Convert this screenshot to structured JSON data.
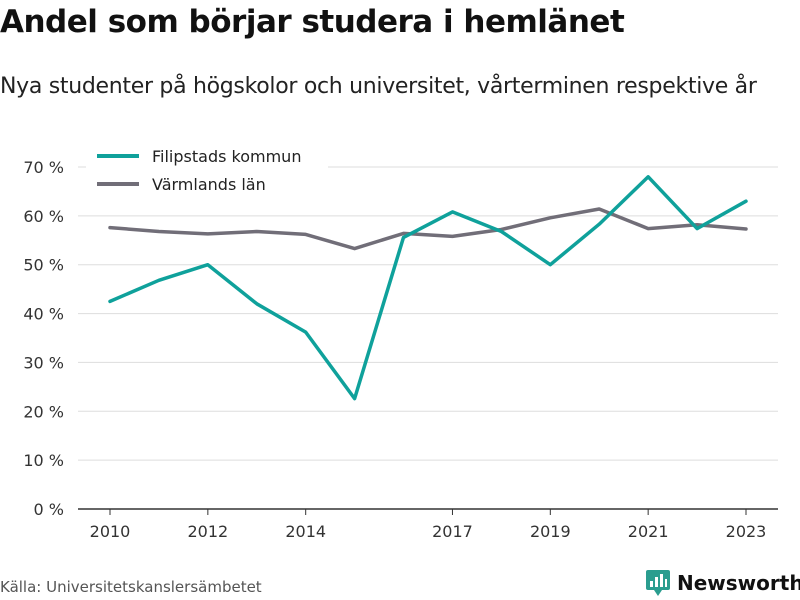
{
  "header": {
    "title": "Andel som börjar studera i hemlänet",
    "subtitle": "Nya studenter på högskolor och universitet, vårterminen respektive år"
  },
  "footer": {
    "source": "Källa: Universitetskanslersämbetet",
    "brand": "Newsworthy",
    "brand_color": "#2a9d8f",
    "brand_icon": "bar-chart-icon"
  },
  "chart_data": {
    "type": "line",
    "title": "Andel som börjar studera i hemlänet",
    "subtitle": "Nya studenter på högskolor och universitet, vårterminen respektive år",
    "xlabel": "",
    "ylabel": "",
    "x": [
      2010,
      2011,
      2012,
      2013,
      2014,
      2015,
      2016,
      2017,
      2018,
      2019,
      2020,
      2021,
      2022,
      2023
    ],
    "x_ticks": [
      2010,
      2012,
      2014,
      2017,
      2019,
      2021,
      2023
    ],
    "y_ticks": [
      0,
      10,
      20,
      30,
      40,
      50,
      60,
      70
    ],
    "y_tick_labels": [
      "0 %",
      "10 %",
      "20 %",
      "30 %",
      "40 %",
      "50 %",
      "60 %",
      "70 %"
    ],
    "ylim": [
      0,
      70
    ],
    "xlim": [
      2010,
      2023
    ],
    "grid": true,
    "legend_position": "top-left",
    "series": [
      {
        "name": "Filipstads kommun",
        "color": "#0fa19b",
        "values": [
          42.5,
          46.8,
          50.0,
          42.0,
          36.2,
          22.6,
          55.6,
          60.8,
          56.8,
          50.0,
          58.3,
          68.0,
          57.4,
          63.0
        ]
      },
      {
        "name": "Värmlands län",
        "color": "#716e78",
        "values": [
          57.6,
          56.8,
          56.3,
          56.8,
          56.2,
          53.3,
          56.4,
          55.8,
          57.2,
          59.6,
          61.4,
          57.4,
          58.2,
          57.3
        ]
      }
    ]
  }
}
